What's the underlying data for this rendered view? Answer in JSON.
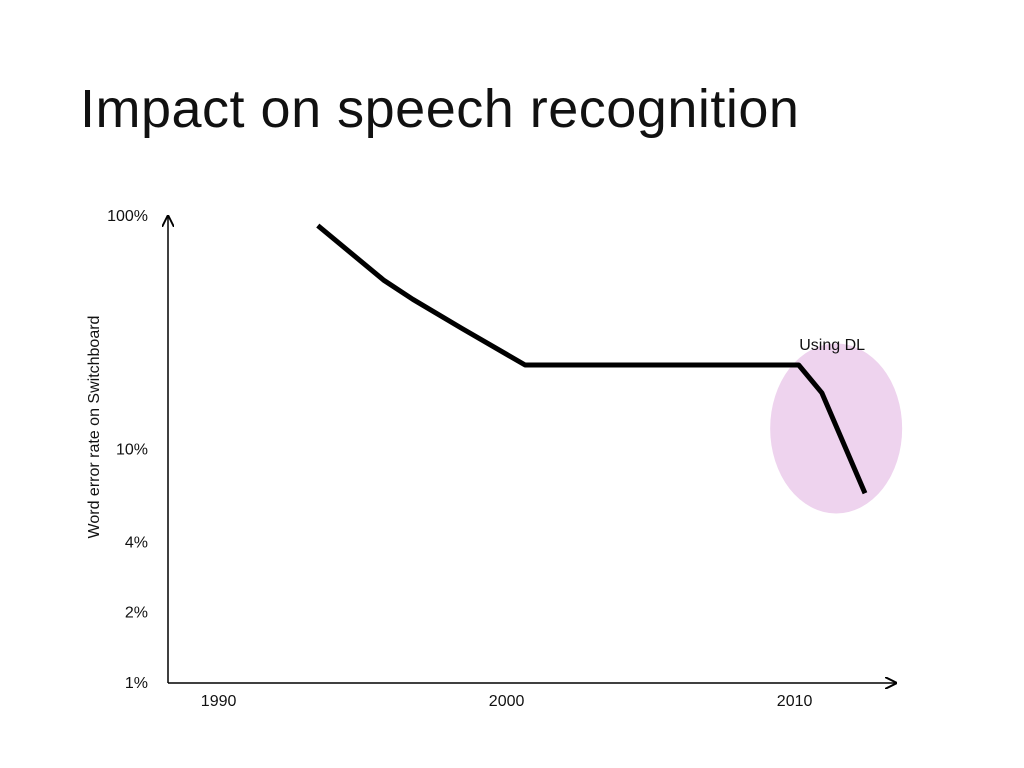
{
  "slide": {
    "title": "Impact on speech recognition"
  },
  "chart_data": {
    "type": "line",
    "title": "",
    "xlabel": "",
    "ylabel": "Word error rate on Switchboard",
    "yscale": "log",
    "xlim": [
      1988,
      2014
    ],
    "ylim": [
      1,
      100
    ],
    "x_ticks": [
      1990,
      2000,
      2010
    ],
    "x_tick_labels": [
      "1990",
      "2000",
      "2010"
    ],
    "y_ticks": [
      1,
      2,
      4,
      10,
      100
    ],
    "y_tick_labels": [
      "1%",
      "2%",
      "4%",
      "10%",
      "100%"
    ],
    "grid": false,
    "series": [
      {
        "color": "#000000",
        "points": [
          {
            "x": 1993.2,
            "y": 91
          },
          {
            "x": 1995.5,
            "y": 53
          },
          {
            "x": 1996.5,
            "y": 44
          },
          {
            "x": 1998.2,
            "y": 33
          },
          {
            "x": 2000.4,
            "y": 23
          },
          {
            "x": 2009.9,
            "y": 23
          },
          {
            "x": 2010.7,
            "y": 17.5
          },
          {
            "x": 2012.2,
            "y": 6.5
          }
        ]
      }
    ],
    "annotations": [
      {
        "text": "Using DL",
        "highlight": "ellipse",
        "color": "#eed3ee",
        "x_center": 2011.2,
        "y_center": 12.3
      }
    ]
  }
}
